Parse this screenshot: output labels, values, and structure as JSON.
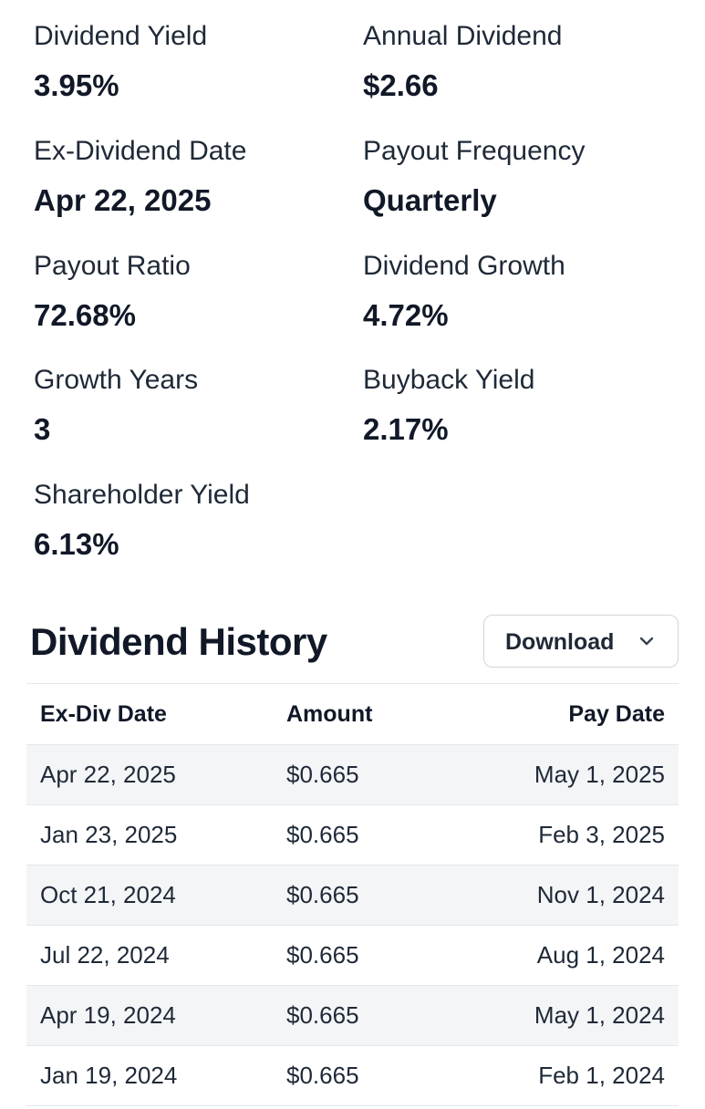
{
  "stats": [
    {
      "label": "Dividend Yield",
      "value": "3.95%"
    },
    {
      "label": "Annual Dividend",
      "value": "$2.66"
    },
    {
      "label": "Ex-Dividend Date",
      "value": "Apr 22, 2025"
    },
    {
      "label": "Payout Frequency",
      "value": "Quarterly"
    },
    {
      "label": "Payout Ratio",
      "value": "72.68%"
    },
    {
      "label": "Dividend Growth",
      "value": "4.72%"
    },
    {
      "label": "Growth Years",
      "value": "3"
    },
    {
      "label": "Buyback Yield",
      "value": "2.17%"
    },
    {
      "label": "Shareholder Yield",
      "value": "6.13%"
    }
  ],
  "history": {
    "title": "Dividend History",
    "download_label": "Download",
    "download_icon": "chevron-down-icon",
    "columns": [
      "Ex-Div Date",
      "Amount",
      "Pay Date"
    ],
    "rows": [
      [
        "Apr 22, 2025",
        "$0.665",
        "May 1, 2025"
      ],
      [
        "Jan 23, 2025",
        "$0.665",
        "Feb 3, 2025"
      ],
      [
        "Oct 21, 2024",
        "$0.665",
        "Nov 1, 2024"
      ],
      [
        "Jul 22, 2024",
        "$0.665",
        "Aug 1, 2024"
      ],
      [
        "Apr 19, 2024",
        "$0.665",
        "May 1, 2024"
      ],
      [
        "Jan 19, 2024",
        "$0.665",
        "Feb 1, 2024"
      ]
    ]
  },
  "colors": {
    "text": "#111827",
    "border": "#e5e7eb",
    "row_alt": "#f4f5f7"
  }
}
